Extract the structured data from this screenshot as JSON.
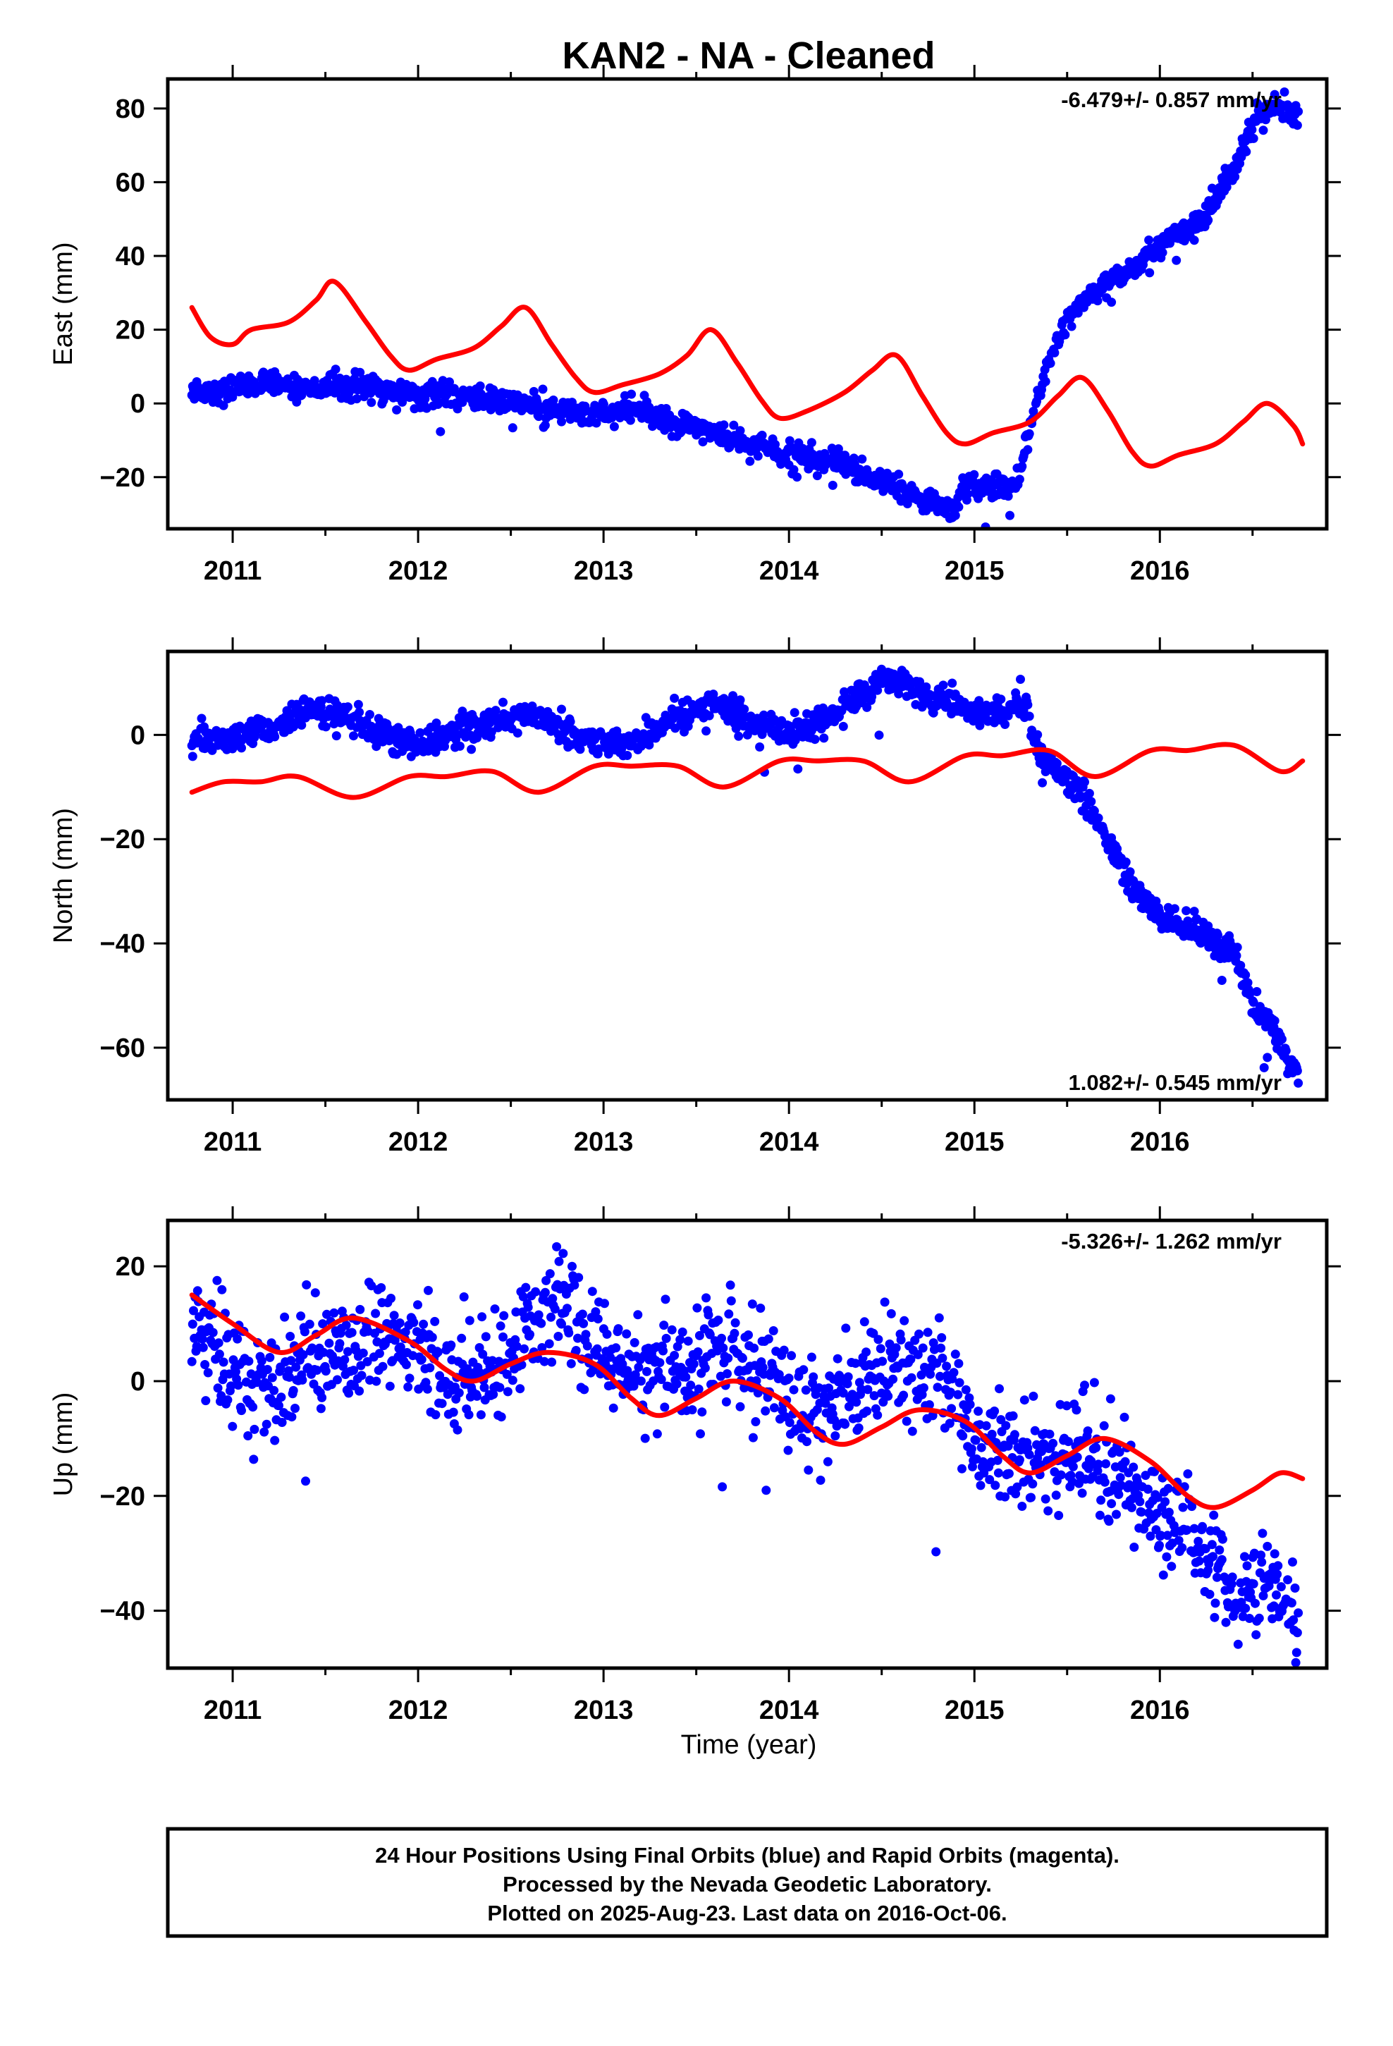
{
  "title": "KAN2  - NA - Cleaned",
  "colors": {
    "data": "#0000ff",
    "model": "#ff0000",
    "frame": "#000000"
  },
  "xlabel": "Time (year)",
  "footer": {
    "line1": "24 Hour Positions Using Final Orbits (blue) and Rapid Orbits (magenta).",
    "line2": "Processed by the Nevada Geodetic Laboratory.",
    "line3": "Plotted on 2025-Aug-23. Last data on 2016-Oct-06."
  },
  "chart_data": [
    {
      "type": "scatter",
      "ylabel": "East (mm)",
      "rate_text": "-6.479+/- 0.857 mm/yr",
      "rate_position": "top-right",
      "xlim": [
        2010.65,
        2016.9
      ],
      "ylim": [
        -34,
        88
      ],
      "x_ticks": [
        2011,
        2012,
        2013,
        2014,
        2015,
        2016
      ],
      "y_ticks": [
        -20,
        0,
        20,
        40,
        60,
        80
      ],
      "grid": false,
      "series": [
        {
          "kind": "points",
          "noise": 1.7,
          "x": [
            2010.78,
            2010.9,
            2011.0,
            2011.2,
            2011.4,
            2011.6,
            2011.8,
            2012.0,
            2012.2,
            2012.4,
            2012.6,
            2012.8,
            2013.0,
            2013.2,
            2013.4,
            2013.6,
            2013.8,
            2014.0,
            2014.2,
            2014.4,
            2014.6,
            2014.8,
            2014.9,
            2014.93,
            2015.0,
            2015.1,
            2015.24,
            2015.28,
            2015.35,
            2015.45,
            2015.55,
            2015.7,
            2015.85,
            2016.0,
            2016.2,
            2016.3,
            2016.42,
            2016.5,
            2016.6,
            2016.75
          ],
          "y": [
            4,
            3,
            4,
            5,
            4,
            5,
            4,
            2,
            3,
            1,
            -1,
            -2,
            -3,
            -2,
            -6,
            -8,
            -11,
            -14,
            -15,
            -19,
            -23,
            -28,
            -30,
            -22,
            -23,
            -22,
            -22,
            -10,
            4,
            18,
            27,
            32,
            36,
            43,
            48,
            55,
            66,
            76,
            80,
            79
          ]
        },
        {
          "kind": "curve",
          "x": [
            2010.78,
            2010.88,
            2011.0,
            2011.1,
            2011.3,
            2011.45,
            2011.55,
            2011.72,
            2011.85,
            2011.95,
            2012.1,
            2012.3,
            2012.45,
            2012.58,
            2012.72,
            2012.85,
            2012.95,
            2013.1,
            2013.3,
            2013.45,
            2013.58,
            2013.72,
            2013.85,
            2013.95,
            2014.1,
            2014.3,
            2014.45,
            2014.58,
            2014.72,
            2014.85,
            2014.95,
            2015.1,
            2015.3,
            2015.45,
            2015.58,
            2015.72,
            2015.85,
            2015.95,
            2016.1,
            2016.3,
            2016.45,
            2016.58,
            2016.72,
            2016.77
          ],
          "y": [
            26,
            18,
            16,
            20,
            22,
            28,
            33,
            22,
            13,
            9,
            12,
            15,
            21,
            26,
            16,
            7,
            3,
            5,
            8,
            13,
            20,
            11,
            1,
            -4,
            -2,
            3,
            9,
            13,
            2,
            -8,
            -11,
            -8,
            -5,
            2,
            7,
            -2,
            -13,
            -17,
            -14,
            -11,
            -5,
            0,
            -6,
            -11
          ]
        }
      ]
    },
    {
      "type": "scatter",
      "ylabel": "North (mm)",
      "rate_text": "1.082+/- 0.545 mm/yr",
      "rate_position": "bottom-right",
      "xlim": [
        2010.65,
        2016.9
      ],
      "ylim": [
        -70,
        16
      ],
      "x_ticks": [
        2011,
        2012,
        2013,
        2014,
        2015,
        2016
      ],
      "y_ticks": [
        -60,
        -40,
        -20,
        0
      ],
      "grid": false,
      "series": [
        {
          "kind": "points",
          "noise": 1.4,
          "x": [
            2010.78,
            2011.0,
            2011.2,
            2011.4,
            2011.6,
            2011.8,
            2012.0,
            2012.2,
            2012.4,
            2012.6,
            2012.8,
            2013.0,
            2013.2,
            2013.4,
            2013.6,
            2013.8,
            2014.0,
            2014.2,
            2014.4,
            2014.55,
            2014.7,
            2014.9,
            2015.1,
            2015.28,
            2015.35,
            2015.5,
            2015.65,
            2015.8,
            2016.0,
            2016.2,
            2016.4,
            2016.5,
            2016.6,
            2016.75
          ],
          "y": [
            -1,
            -1,
            1,
            5,
            3,
            0,
            -2,
            1,
            3,
            4,
            1,
            -2,
            -1,
            4,
            6,
            2,
            0,
            3,
            8,
            11,
            8,
            5,
            4,
            6,
            -4,
            -8,
            -15,
            -26,
            -35,
            -37,
            -41,
            -52,
            -55,
            -67
          ]
        },
        {
          "kind": "curve",
          "x": [
            2010.78,
            2010.95,
            2011.15,
            2011.35,
            2011.65,
            2011.95,
            2012.15,
            2012.4,
            2012.65,
            2012.95,
            2013.15,
            2013.4,
            2013.65,
            2013.95,
            2014.15,
            2014.4,
            2014.65,
            2014.95,
            2015.15,
            2015.4,
            2015.65,
            2015.95,
            2016.15,
            2016.4,
            2016.65,
            2016.77
          ],
          "y": [
            -11,
            -9,
            -9,
            -8,
            -12,
            -8,
            -8,
            -7,
            -11,
            -6,
            -6,
            -6,
            -10,
            -5,
            -5,
            -5,
            -9,
            -4,
            -4,
            -3,
            -8,
            -3,
            -3,
            -2,
            -7,
            -5
          ]
        }
      ]
    },
    {
      "type": "scatter",
      "ylabel": "Up (mm)",
      "rate_text": "-5.326+/- 1.262 mm/yr",
      "rate_position": "top-right",
      "xlim": [
        2010.65,
        2016.9
      ],
      "ylim": [
        -50,
        28
      ],
      "x_ticks": [
        2011,
        2012,
        2013,
        2014,
        2015,
        2016
      ],
      "y_ticks": [
        -40,
        -20,
        0,
        20
      ],
      "grid": false,
      "series": [
        {
          "kind": "points",
          "noise": 4.6,
          "x": [
            2010.78,
            2011.0,
            2011.2,
            2011.4,
            2011.6,
            2011.8,
            2012.0,
            2012.2,
            2012.4,
            2012.6,
            2012.8,
            2013.0,
            2013.2,
            2013.4,
            2013.6,
            2013.8,
            2014.0,
            2014.2,
            2014.4,
            2014.6,
            2014.8,
            2015.0,
            2015.2,
            2015.4,
            2015.6,
            2015.8,
            2016.0,
            2016.2,
            2016.4,
            2016.6,
            2016.75
          ],
          "y": [
            10,
            3,
            -1,
            4,
            7,
            8,
            5,
            1,
            3,
            10,
            12,
            4,
            1,
            3,
            5,
            2,
            -2,
            -6,
            0,
            2,
            1,
            -10,
            -14,
            -12,
            -12,
            -17,
            -23,
            -28,
            -37,
            -35,
            -42
          ]
        },
        {
          "kind": "curve",
          "x": [
            2010.78,
            2011.0,
            2011.25,
            2011.45,
            2011.65,
            2011.95,
            2012.15,
            2012.3,
            2012.5,
            2012.7,
            2012.95,
            2013.15,
            2013.3,
            2013.5,
            2013.7,
            2013.95,
            2014.15,
            2014.3,
            2014.5,
            2014.7,
            2014.95,
            2015.15,
            2015.3,
            2015.5,
            2015.7,
            2015.95,
            2016.15,
            2016.3,
            2016.5,
            2016.65,
            2016.77
          ],
          "y": [
            15,
            10,
            5,
            8,
            11,
            7,
            2,
            0,
            3,
            5,
            3,
            -3,
            -6,
            -3,
            0,
            -3,
            -9,
            -11,
            -8,
            -5,
            -7,
            -13,
            -16,
            -13,
            -10,
            -14,
            -20,
            -22,
            -19,
            -16,
            -17
          ]
        }
      ]
    }
  ]
}
